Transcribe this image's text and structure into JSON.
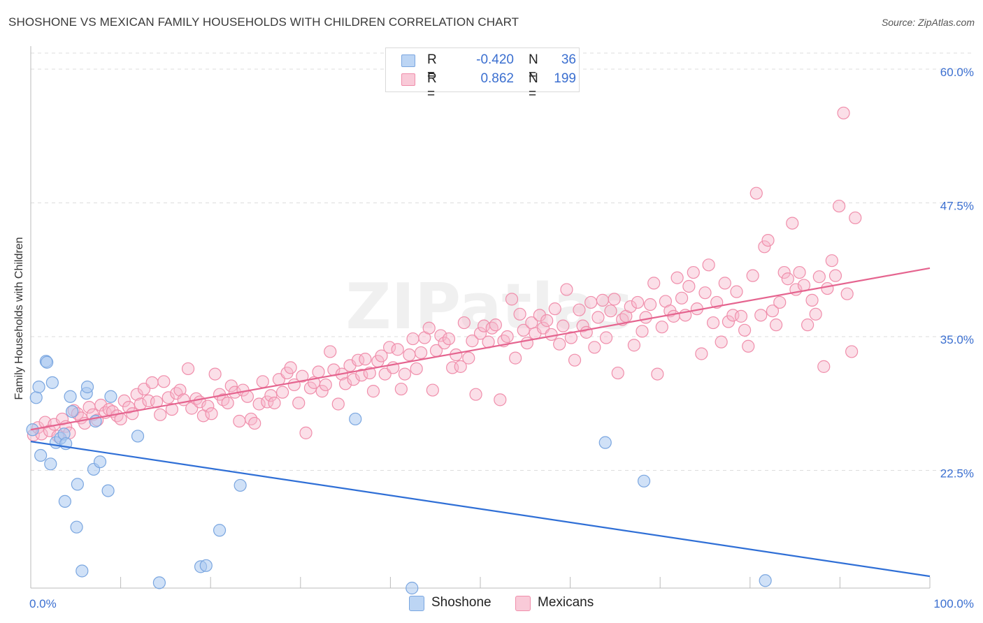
{
  "title": "SHOSHONE VS MEXICAN FAMILY HOUSEHOLDS WITH CHILDREN CORRELATION CHART",
  "source": "Source: ZipAtlas.com",
  "watermark": "ZIPatlas",
  "colors": {
    "shoshone_fill": "#a9c8f0",
    "shoshone_stroke": "#7aa6e0",
    "shoshone_line": "#2f6fd6",
    "mexicans_fill": "#f7b9cb",
    "mexicans_stroke": "#f08eab",
    "mexicans_line": "#e5648f",
    "tick_label": "#3b6fd0",
    "grid": "#dddddd"
  },
  "legend": {
    "rows": [
      {
        "r_label": "R =",
        "r_value": "-0.420",
        "n_label": "N =",
        "n_value": "36"
      },
      {
        "r_label": "R =",
        "r_value": "0.862",
        "n_label": "N =",
        "n_value": "199"
      }
    ]
  },
  "chart_data": {
    "type": "scatter",
    "title": "SHOSHONE VS MEXICAN FAMILY HOUSEHOLDS WITH CHILDREN CORRELATION CHART",
    "xlabel": "",
    "ylabel": "Family Households with Children",
    "xlim": [
      0,
      100
    ],
    "ylim": [
      11.5,
      61.5
    ],
    "x_tick_labels": [
      {
        "value": 0,
        "label": "0.0%"
      },
      {
        "value": 100,
        "label": "100.0%"
      }
    ],
    "y_tick_labels": [
      {
        "value": 22.5,
        "label": "22.5%"
      },
      {
        "value": 35.0,
        "label": "35.0%"
      },
      {
        "value": 47.5,
        "label": "47.5%"
      },
      {
        "value": 60.0,
        "label": "60.0%"
      }
    ],
    "x_minor_ticks": [
      10,
      20,
      30,
      40,
      50,
      60,
      70,
      80,
      90,
      100
    ],
    "series": [
      {
        "name": "Shoshone",
        "legend_label": "Shoshone",
        "r": -0.42,
        "n": 36,
        "trend": {
          "x": [
            0,
            100
          ],
          "y": [
            25.2,
            12.6
          ]
        },
        "points": [
          [
            0.2,
            26.3
          ],
          [
            0.6,
            29.3
          ],
          [
            0.9,
            30.3
          ],
          [
            1.1,
            23.9
          ],
          [
            1.7,
            32.7
          ],
          [
            1.8,
            32.6
          ],
          [
            2.2,
            23.1
          ],
          [
            2.4,
            30.7
          ],
          [
            2.8,
            25.1
          ],
          [
            3.3,
            25.5
          ],
          [
            3.7,
            25.9
          ],
          [
            3.9,
            25.0
          ],
          [
            4.4,
            29.4
          ],
          [
            4.6,
            28.0
          ],
          [
            5.1,
            17.2
          ],
          [
            5.2,
            21.2
          ],
          [
            5.7,
            13.1
          ],
          [
            6.2,
            29.7
          ],
          [
            6.3,
            30.3
          ],
          [
            7.0,
            22.6
          ],
          [
            7.2,
            27.1
          ],
          [
            7.7,
            23.3
          ],
          [
            8.6,
            20.6
          ],
          [
            8.9,
            29.4
          ],
          [
            11.9,
            25.7
          ],
          [
            14.3,
            12.0
          ],
          [
            18.9,
            13.5
          ],
          [
            19.5,
            13.6
          ],
          [
            21.0,
            16.9
          ],
          [
            23.3,
            21.1
          ],
          [
            36.1,
            27.3
          ],
          [
            42.4,
            11.5
          ],
          [
            63.9,
            25.1
          ],
          [
            68.2,
            21.5
          ],
          [
            81.7,
            12.2
          ],
          [
            3.8,
            19.6
          ]
        ]
      },
      {
        "name": "Mexicans",
        "legend_label": "Mexicans",
        "r": 0.862,
        "n": 199,
        "trend": {
          "x": [
            0,
            100
          ],
          "y": [
            26.3,
            41.4
          ]
        },
        "points": [
          [
            0.3,
            25.8
          ],
          [
            0.8,
            26.5
          ],
          [
            1.2,
            25.9
          ],
          [
            1.6,
            27.0
          ],
          [
            2.1,
            26.2
          ],
          [
            2.6,
            26.8
          ],
          [
            3.0,
            25.7
          ],
          [
            3.5,
            27.3
          ],
          [
            3.9,
            26.6
          ],
          [
            4.3,
            26.0
          ],
          [
            4.8,
            28.1
          ],
          [
            5.2,
            27.8
          ],
          [
            5.6,
            27.4
          ],
          [
            6.0,
            26.9
          ],
          [
            6.5,
            28.4
          ],
          [
            6.9,
            27.7
          ],
          [
            7.4,
            27.2
          ],
          [
            7.8,
            28.6
          ],
          [
            8.3,
            27.9
          ],
          [
            8.7,
            28.2
          ],
          [
            9.1,
            28.0
          ],
          [
            9.6,
            27.6
          ],
          [
            10.0,
            27.3
          ],
          [
            10.4,
            29.0
          ],
          [
            10.9,
            28.4
          ],
          [
            11.3,
            27.8
          ],
          [
            11.8,
            29.6
          ],
          [
            12.2,
            28.7
          ],
          [
            12.6,
            30.1
          ],
          [
            13.1,
            29.0
          ],
          [
            13.5,
            30.7
          ],
          [
            14.0,
            28.9
          ],
          [
            14.4,
            27.7
          ],
          [
            14.8,
            30.8
          ],
          [
            15.3,
            29.3
          ],
          [
            15.7,
            28.2
          ],
          [
            16.2,
            29.7
          ],
          [
            16.6,
            30.0
          ],
          [
            17.0,
            29.1
          ],
          [
            17.5,
            32.0
          ],
          [
            17.9,
            28.3
          ],
          [
            18.4,
            29.2
          ],
          [
            18.8,
            28.9
          ],
          [
            19.2,
            27.6
          ],
          [
            19.7,
            28.5
          ],
          [
            20.1,
            27.8
          ],
          [
            20.5,
            31.5
          ],
          [
            21.0,
            29.6
          ],
          [
            21.4,
            29.1
          ],
          [
            21.9,
            28.8
          ],
          [
            22.3,
            30.4
          ],
          [
            22.7,
            29.8
          ],
          [
            23.2,
            27.1
          ],
          [
            23.6,
            30.0
          ],
          [
            24.1,
            29.4
          ],
          [
            24.5,
            27.3
          ],
          [
            24.9,
            26.9
          ],
          [
            25.4,
            28.7
          ],
          [
            25.8,
            30.8
          ],
          [
            26.3,
            28.9
          ],
          [
            26.7,
            29.5
          ],
          [
            27.1,
            28.8
          ],
          [
            27.6,
            31.0
          ],
          [
            28.0,
            29.8
          ],
          [
            28.5,
            31.6
          ],
          [
            28.9,
            32.1
          ],
          [
            29.3,
            30.5
          ],
          [
            29.8,
            28.8
          ],
          [
            30.2,
            31.3
          ],
          [
            30.6,
            26.0
          ],
          [
            31.1,
            30.2
          ],
          [
            31.5,
            30.7
          ],
          [
            32.0,
            31.7
          ],
          [
            32.4,
            29.9
          ],
          [
            32.8,
            30.5
          ],
          [
            33.3,
            33.6
          ],
          [
            33.7,
            31.9
          ],
          [
            34.2,
            28.7
          ],
          [
            34.6,
            31.5
          ],
          [
            35.0,
            30.6
          ],
          [
            35.5,
            32.3
          ],
          [
            35.9,
            31.0
          ],
          [
            36.4,
            32.8
          ],
          [
            36.8,
            31.4
          ],
          [
            37.2,
            32.9
          ],
          [
            37.7,
            31.6
          ],
          [
            38.1,
            29.9
          ],
          [
            38.6,
            32.7
          ],
          [
            39.0,
            33.2
          ],
          [
            39.4,
            31.5
          ],
          [
            39.9,
            34.0
          ],
          [
            40.3,
            32.1
          ],
          [
            40.8,
            33.8
          ],
          [
            41.2,
            30.1
          ],
          [
            41.6,
            31.5
          ],
          [
            42.1,
            33.3
          ],
          [
            42.5,
            34.8
          ],
          [
            42.9,
            32.0
          ],
          [
            43.4,
            33.5
          ],
          [
            43.8,
            34.9
          ],
          [
            44.3,
            35.8
          ],
          [
            44.7,
            30.0
          ],
          [
            45.1,
            33.7
          ],
          [
            45.6,
            35.1
          ],
          [
            46.0,
            34.4
          ],
          [
            46.5,
            34.8
          ],
          [
            46.9,
            32.1
          ],
          [
            47.3,
            33.3
          ],
          [
            47.8,
            32.2
          ],
          [
            48.2,
            36.3
          ],
          [
            48.7,
            33.0
          ],
          [
            49.1,
            34.6
          ],
          [
            49.5,
            29.6
          ],
          [
            50.0,
            35.3
          ],
          [
            50.4,
            36.0
          ],
          [
            50.9,
            34.5
          ],
          [
            51.3,
            35.8
          ],
          [
            51.7,
            36.1
          ],
          [
            52.2,
            29.1
          ],
          [
            52.6,
            34.6
          ],
          [
            53.0,
            35.0
          ],
          [
            53.5,
            38.5
          ],
          [
            53.9,
            33.0
          ],
          [
            54.4,
            37.1
          ],
          [
            54.8,
            35.6
          ],
          [
            55.2,
            34.4
          ],
          [
            55.7,
            36.3
          ],
          [
            56.1,
            35.3
          ],
          [
            56.6,
            37.0
          ],
          [
            57.0,
            35.8
          ],
          [
            57.4,
            36.5
          ],
          [
            57.9,
            35.2
          ],
          [
            58.3,
            37.6
          ],
          [
            58.8,
            34.3
          ],
          [
            59.2,
            36.0
          ],
          [
            59.6,
            39.4
          ],
          [
            60.1,
            34.9
          ],
          [
            60.5,
            32.8
          ],
          [
            61.0,
            37.5
          ],
          [
            61.4,
            36.0
          ],
          [
            61.8,
            35.4
          ],
          [
            62.3,
            38.2
          ],
          [
            62.7,
            34.0
          ],
          [
            63.1,
            36.8
          ],
          [
            63.6,
            38.4
          ],
          [
            64.0,
            34.9
          ],
          [
            64.5,
            37.4
          ],
          [
            64.9,
            38.5
          ],
          [
            65.3,
            31.6
          ],
          [
            65.8,
            36.6
          ],
          [
            66.2,
            36.9
          ],
          [
            66.7,
            37.8
          ],
          [
            67.1,
            34.2
          ],
          [
            67.5,
            38.2
          ],
          [
            68.0,
            35.5
          ],
          [
            68.4,
            36.8
          ],
          [
            68.9,
            38.0
          ],
          [
            69.3,
            40.0
          ],
          [
            69.7,
            31.5
          ],
          [
            70.2,
            35.9
          ],
          [
            70.6,
            38.3
          ],
          [
            71.1,
            37.4
          ],
          [
            71.5,
            36.9
          ],
          [
            71.9,
            40.5
          ],
          [
            72.4,
            38.6
          ],
          [
            72.8,
            37.0
          ],
          [
            73.2,
            39.7
          ],
          [
            73.7,
            41.0
          ],
          [
            74.1,
            37.6
          ],
          [
            74.6,
            33.4
          ],
          [
            75.0,
            39.1
          ],
          [
            75.4,
            41.7
          ],
          [
            75.9,
            36.3
          ],
          [
            76.3,
            38.2
          ],
          [
            76.8,
            34.5
          ],
          [
            77.2,
            40.0
          ],
          [
            77.6,
            36.4
          ],
          [
            78.1,
            37.0
          ],
          [
            78.5,
            39.2
          ],
          [
            79.0,
            36.9
          ],
          [
            79.4,
            35.6
          ],
          [
            79.8,
            34.1
          ],
          [
            80.3,
            40.7
          ],
          [
            80.7,
            48.4
          ],
          [
            81.2,
            37.0
          ],
          [
            81.6,
            43.4
          ],
          [
            82.0,
            44.0
          ],
          [
            82.5,
            37.4
          ],
          [
            82.9,
            36.1
          ],
          [
            83.3,
            38.2
          ],
          [
            83.8,
            41.0
          ],
          [
            84.2,
            40.4
          ],
          [
            84.7,
            45.6
          ],
          [
            85.1,
            39.4
          ],
          [
            85.5,
            41.0
          ],
          [
            86.0,
            39.8
          ],
          [
            86.4,
            36.1
          ],
          [
            86.9,
            38.4
          ],
          [
            87.3,
            37.1
          ],
          [
            87.7,
            40.6
          ],
          [
            88.2,
            32.2
          ],
          [
            88.6,
            39.5
          ],
          [
            89.1,
            42.1
          ],
          [
            89.5,
            40.7
          ],
          [
            89.9,
            47.2
          ],
          [
            90.4,
            55.9
          ],
          [
            90.8,
            39.0
          ],
          [
            91.3,
            33.6
          ],
          [
            91.7,
            46.1
          ]
        ]
      }
    ]
  }
}
